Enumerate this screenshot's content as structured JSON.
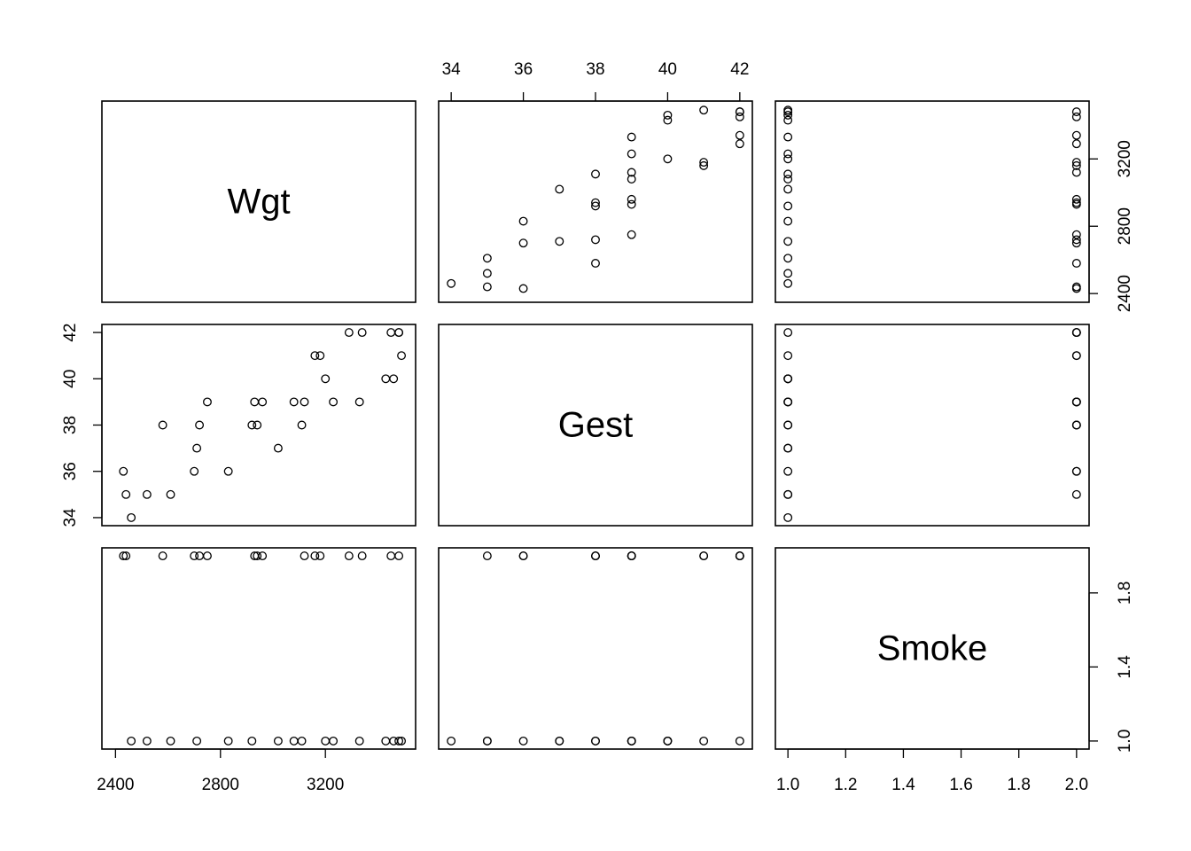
{
  "chart_data": {
    "type": "scatter",
    "variables": [
      {
        "name": "Wgt",
        "range": [
          2396,
          3496
        ]
      },
      {
        "name": "Gest",
        "range": [
          34,
          42
        ]
      },
      {
        "name": "Smoke",
        "range": [
          1,
          2
        ]
      }
    ],
    "axes": {
      "top": [
        {
          "column": 1,
          "ticks": [
            "34",
            "36",
            "38",
            "40",
            "42"
          ]
        }
      ],
      "bottom": [
        {
          "column": 0,
          "ticks": [
            "2400",
            "2800",
            "3200"
          ]
        },
        {
          "column": 2,
          "ticks": [
            "1.0",
            "1.2",
            "1.4",
            "1.6",
            "1.8",
            "2.0"
          ]
        }
      ],
      "left": [
        {
          "row": 1,
          "ticks": [
            "34",
            "36",
            "38",
            "40",
            "42"
          ]
        }
      ],
      "right": [
        {
          "row": 0,
          "ticks": [
            "2400",
            "2800",
            "3200"
          ]
        },
        {
          "row": 2,
          "ticks": [
            "1.0",
            "1.4",
            "1.8"
          ]
        }
      ]
    },
    "observations": [
      {
        "Wgt": 2430,
        "Gest": 36,
        "Smoke": 2
      },
      {
        "Wgt": 2440,
        "Gest": 35,
        "Smoke": 2
      },
      {
        "Wgt": 2460,
        "Gest": 34,
        "Smoke": 1
      },
      {
        "Wgt": 2520,
        "Gest": 35,
        "Smoke": 1
      },
      {
        "Wgt": 2580,
        "Gest": 38,
        "Smoke": 2
      },
      {
        "Wgt": 2610,
        "Gest": 35,
        "Smoke": 1
      },
      {
        "Wgt": 2700,
        "Gest": 36,
        "Smoke": 2
      },
      {
        "Wgt": 2710,
        "Gest": 37,
        "Smoke": 1
      },
      {
        "Wgt": 2720,
        "Gest": 38,
        "Smoke": 2
      },
      {
        "Wgt": 2750,
        "Gest": 39,
        "Smoke": 2
      },
      {
        "Wgt": 2830,
        "Gest": 36,
        "Smoke": 1
      },
      {
        "Wgt": 2920,
        "Gest": 38,
        "Smoke": 1
      },
      {
        "Wgt": 2930,
        "Gest": 39,
        "Smoke": 2
      },
      {
        "Wgt": 2940,
        "Gest": 38,
        "Smoke": 2
      },
      {
        "Wgt": 2960,
        "Gest": 39,
        "Smoke": 2
      },
      {
        "Wgt": 3020,
        "Gest": 37,
        "Smoke": 1
      },
      {
        "Wgt": 3080,
        "Gest": 39,
        "Smoke": 1
      },
      {
        "Wgt": 3110,
        "Gest": 38,
        "Smoke": 1
      },
      {
        "Wgt": 3120,
        "Gest": 39,
        "Smoke": 2
      },
      {
        "Wgt": 3160,
        "Gest": 41,
        "Smoke": 2
      },
      {
        "Wgt": 3180,
        "Gest": 41,
        "Smoke": 2
      },
      {
        "Wgt": 3200,
        "Gest": 40,
        "Smoke": 1
      },
      {
        "Wgt": 3230,
        "Gest": 39,
        "Smoke": 1
      },
      {
        "Wgt": 3290,
        "Gest": 42,
        "Smoke": 2
      },
      {
        "Wgt": 3330,
        "Gest": 39,
        "Smoke": 1
      },
      {
        "Wgt": 3340,
        "Gest": 42,
        "Smoke": 2
      },
      {
        "Wgt": 3430,
        "Gest": 40,
        "Smoke": 1
      },
      {
        "Wgt": 3450,
        "Gest": 42,
        "Smoke": 2
      },
      {
        "Wgt": 3460,
        "Gest": 40,
        "Smoke": 1
      },
      {
        "Wgt": 3480,
        "Gest": 42,
        "Smoke": 2
      },
      {
        "Wgt": 3480,
        "Gest": 42,
        "Smoke": 1
      },
      {
        "Wgt": 3490,
        "Gest": 41,
        "Smoke": 1
      }
    ],
    "grid": false,
    "legend": "none"
  }
}
